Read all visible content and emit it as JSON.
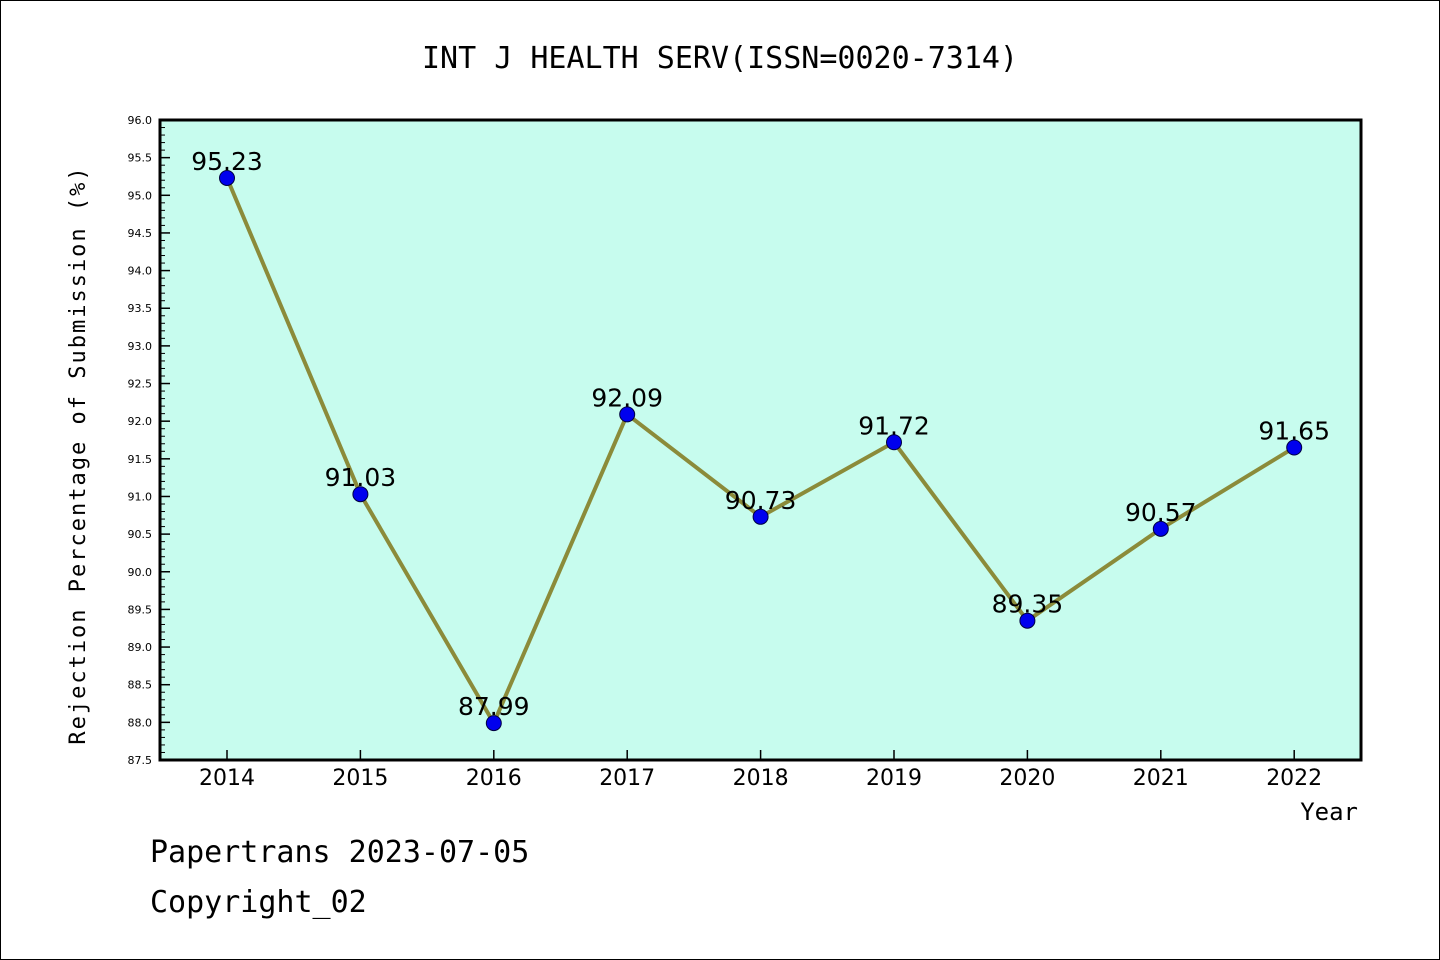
{
  "chart_data": {
    "type": "line",
    "title": "INT J HEALTH SERV(ISSN=0020-7314)",
    "xlabel": "Year",
    "ylabel": "Rejection Percentage of Submission (%)",
    "categories": [
      "2014",
      "2015",
      "2016",
      "2017",
      "2018",
      "2019",
      "2020",
      "2021",
      "2022"
    ],
    "values": [
      95.23,
      91.03,
      87.99,
      92.09,
      90.73,
      91.72,
      89.35,
      90.57,
      91.65
    ],
    "data_labels": [
      "95.23",
      "91.03",
      "87.99",
      "92.09",
      "90.73",
      "91.72",
      "89.35",
      "90.57",
      "91.65"
    ],
    "ylim": [
      87.5,
      96.0
    ],
    "y_ticks": [
      "87.5",
      "88.0",
      "88.5",
      "89.0",
      "89.5",
      "90.0",
      "90.5",
      "91.0",
      "91.5",
      "92.0",
      "92.5",
      "93.0",
      "93.5",
      "94.0",
      "94.5",
      "95.0",
      "95.5",
      "96.0"
    ],
    "grid": false,
    "colors": {
      "plot_background": "#c7fcee",
      "line": "#8b8b3a",
      "marker": "#0000ee"
    }
  },
  "footer": {
    "line1": "Papertrans 2023-07-05",
    "line2": "Copyright_02"
  }
}
